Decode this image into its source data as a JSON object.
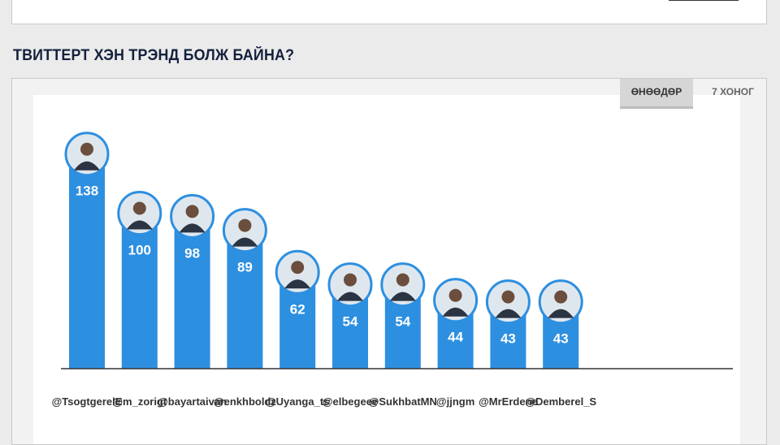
{
  "section": {
    "title": "ТВИТТЕРТ ХЭН ТРЭНД БОЛЖ БАЙНА?"
  },
  "tabs": [
    {
      "label": "ӨНӨӨДӨР",
      "active": true
    },
    {
      "label": "7 ХОНОГ",
      "active": false
    }
  ],
  "chart_data": {
    "type": "bar",
    "categories": [
      "@TsogtgerelE",
      "@m_zorigt",
      "@bayartaivan",
      "@enkhboldz",
      "@Uyanga_ts",
      "@elbegeee",
      "@SukhbatMN",
      "@jjngm",
      "@MrErdene",
      "@Demberel_S"
    ],
    "values": [
      138,
      100,
      98,
      89,
      62,
      54,
      54,
      44,
      43,
      43
    ],
    "title": "",
    "xlabel": "",
    "ylabel": "",
    "ylim": [
      0,
      150
    ],
    "grid": false,
    "legend": "none",
    "colors": {
      "bar": "#2d8fe0",
      "label": "#ffffff",
      "axis": "#333333"
    },
    "avatar_icon": "profile-photo-icon"
  }
}
